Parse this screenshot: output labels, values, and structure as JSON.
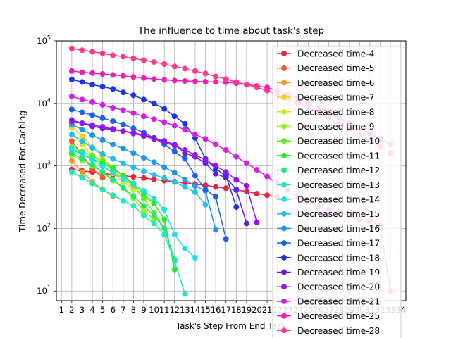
{
  "chart_data": {
    "type": "line",
    "title": "The influence to time about task's step",
    "xlabel": "Task's Step From End Task",
    "ylabel": "Time Decreased For Caching",
    "yscale": "log",
    "xlim": [
      0.5,
      34.5
    ],
    "ylim": [
      7,
      100000
    ],
    "x_ticks": [
      1,
      2,
      3,
      4,
      5,
      6,
      7,
      8,
      9,
      10,
      11,
      12,
      13,
      14,
      15,
      16,
      17,
      18,
      19,
      20,
      21,
      22,
      23,
      24,
      25,
      26,
      27,
      28,
      29,
      30,
      31,
      32,
      33,
      34
    ],
    "y_ticks": [
      {
        "value": 10,
        "base": "10",
        "exp": "1"
      },
      {
        "value": 100,
        "base": "10",
        "exp": "2"
      },
      {
        "value": 1000,
        "base": "10",
        "exp": "3"
      },
      {
        "value": 10000,
        "base": "10",
        "exp": "4"
      },
      {
        "value": 100000,
        "base": "10",
        "exp": "5"
      }
    ],
    "grid": true,
    "legend_position": "right",
    "series": [
      {
        "name": "Decreased time-4",
        "color": "#e8263e",
        "x": [
          2,
          3,
          4,
          5,
          6,
          7,
          8,
          9,
          10,
          11,
          12,
          13,
          14,
          15,
          16,
          17,
          18,
          19,
          20,
          21,
          22
        ],
        "values": [
          880,
          830,
          800,
          760,
          730,
          700,
          670,
          640,
          610,
          580,
          560,
          530,
          510,
          490,
          460,
          440,
          410,
          390,
          360,
          340,
          320
        ]
      },
      {
        "name": "Decreased time-5",
        "color": "#f25c2a",
        "x": [
          2,
          3,
          4,
          5
        ],
        "values": [
          2500,
          1500,
          900,
          650
        ]
      },
      {
        "name": "Decreased time-6",
        "color": "#f5961e",
        "x": [
          2,
          3,
          4,
          5,
          6
        ],
        "values": [
          1200,
          800,
          560,
          420,
          330
        ]
      },
      {
        "name": "Decreased time-7",
        "color": "#f0cf1c",
        "x": [
          2,
          3,
          4,
          5,
          6,
          7,
          8
        ],
        "values": [
          4200,
          3000,
          2000,
          1400,
          900,
          620,
          440
        ]
      },
      {
        "name": "Decreased time-8",
        "color": "#cfe81c",
        "x": [
          2,
          3,
          4,
          5,
          6,
          7,
          8,
          9,
          10
        ],
        "values": [
          3200,
          2200,
          1500,
          1050,
          760,
          560,
          420,
          320,
          250
        ]
      },
      {
        "name": "Decreased time-9",
        "color": "#93ee22",
        "x": [
          2,
          3,
          4,
          5,
          6,
          7,
          8,
          9,
          10
        ],
        "values": [
          1500,
          1200,
          1000,
          780,
          580,
          440,
          300,
          190,
          140
        ]
      },
      {
        "name": "Decreased time-10",
        "color": "#5aee22",
        "x": [
          2,
          3,
          4,
          5,
          6,
          7,
          8,
          9,
          10,
          11
        ],
        "values": [
          2000,
          1700,
          1450,
          1200,
          950,
          700,
          500,
          300,
          180,
          100
        ]
      },
      {
        "name": "Decreased time-11",
        "color": "#22ee28",
        "x": [
          2,
          3,
          4,
          5,
          6,
          7,
          8,
          9,
          10,
          11,
          12
        ],
        "values": [
          1800,
          1550,
          1300,
          1100,
          900,
          700,
          520,
          360,
          250,
          140,
          22
        ]
      },
      {
        "name": "Decreased time-12",
        "color": "#22e870",
        "x": [
          2,
          3,
          4,
          5,
          6,
          7,
          8,
          9,
          10,
          11,
          12
        ],
        "values": [
          1600,
          1300,
          1050,
          800,
          600,
          450,
          330,
          230,
          160,
          100,
          32
        ]
      },
      {
        "name": "Decreased time-13",
        "color": "#22e8b6",
        "x": [
          2,
          3,
          4,
          5,
          6,
          7,
          8,
          9,
          10,
          11,
          12,
          13
        ],
        "values": [
          800,
          650,
          520,
          420,
          340,
          280,
          230,
          160,
          120,
          80,
          30,
          9
        ]
      },
      {
        "name": "Decreased time-14",
        "color": "#22e0e8",
        "x": [
          2,
          3,
          4,
          5,
          6,
          7,
          8,
          9,
          10,
          11,
          12,
          13,
          14
        ],
        "values": [
          1900,
          1550,
          1250,
          980,
          780,
          620,
          500,
          400,
          300,
          200,
          80,
          48,
          34
        ]
      },
      {
        "name": "Decreased time-15",
        "color": "#22c0ee",
        "x": [
          2,
          3,
          4,
          5,
          6,
          7,
          8,
          9,
          10,
          11,
          12,
          13,
          14,
          15
        ],
        "values": [
          3200,
          2500,
          1950,
          1550,
          1300,
          1100,
          950,
          820,
          720,
          640,
          550,
          460,
          380,
          240
        ]
      },
      {
        "name": "Decreased time-16",
        "color": "#2296ee",
        "x": [
          2,
          3,
          4,
          5,
          6,
          7,
          8,
          9,
          10,
          11,
          12,
          13,
          14,
          15,
          16
        ],
        "values": [
          4600,
          3800,
          3100,
          2600,
          2200,
          1900,
          1600,
          1350,
          1150,
          950,
          780,
          600,
          480,
          400,
          95
        ]
      },
      {
        "name": "Decreased time-17",
        "color": "#1e60ee",
        "x": [
          2,
          3,
          4,
          5,
          6,
          7,
          8,
          9,
          10,
          11,
          12,
          13,
          14,
          15,
          16,
          17
        ],
        "values": [
          8000,
          7200,
          6500,
          5800,
          5200,
          4600,
          4000,
          3400,
          2800,
          2200,
          1700,
          1300,
          700,
          420,
          320,
          68
        ]
      },
      {
        "name": "Decreased time-18",
        "color": "#1e34e8",
        "x": [
          2,
          3,
          4,
          5,
          6,
          7,
          8,
          9,
          10,
          11,
          12,
          13,
          14,
          15,
          16,
          17,
          18
        ],
        "values": [
          24000,
          22000,
          20000,
          18500,
          17000,
          15000,
          13500,
          11500,
          10000,
          8200,
          6200,
          4700,
          2800,
          1300,
          900,
          700,
          220
        ]
      },
      {
        "name": "Decreased time-19",
        "color": "#5a22e8",
        "x": [
          2,
          3,
          4,
          5,
          6,
          7,
          8,
          9,
          10,
          11,
          12,
          13,
          14,
          15,
          16,
          17,
          18,
          19
        ],
        "values": [
          5400,
          4800,
          4300,
          4000,
          3800,
          3600,
          3400,
          3100,
          2800,
          2500,
          2200,
          1600,
          1400,
          1100,
          750,
          650,
          420,
          120
        ]
      },
      {
        "name": "Decreased time-20",
        "color": "#9a10e8",
        "x": [
          2,
          3,
          4,
          5,
          6,
          7,
          8,
          9,
          10,
          11,
          12,
          13,
          14,
          15,
          16,
          17,
          18,
          19,
          20
        ],
        "values": [
          5200,
          4800,
          4500,
          4200,
          3900,
          3600,
          3300,
          3000,
          2700,
          2400,
          2100,
          1800,
          1500,
          1250,
          1000,
          800,
          600,
          480,
          125
        ]
      },
      {
        "name": "Decreased time-21",
        "color": "#d21ee8",
        "x": [
          2,
          3,
          4,
          5,
          6,
          7,
          8,
          9,
          10,
          11,
          12,
          13,
          14,
          15,
          16,
          17,
          18,
          19,
          20,
          21,
          22,
          23,
          24,
          25,
          26,
          27,
          28,
          29,
          30,
          31,
          32,
          33
        ],
        "values": [
          13000,
          11500,
          10500,
          9500,
          8500,
          7800,
          7000,
          6200,
          5600,
          5000,
          4400,
          3800,
          3200,
          2700,
          2200,
          1800,
          1400,
          1100,
          870,
          680,
          520,
          410,
          320,
          260,
          220,
          200,
          180,
          160,
          140,
          130,
          110,
          10
        ]
      },
      {
        "name": "Decreased time-25",
        "color": "#ee1eb6",
        "x": [
          2,
          3,
          4,
          5,
          6,
          7,
          8,
          9,
          10,
          11,
          12,
          13,
          14,
          15,
          16,
          17,
          18,
          19,
          20,
          21,
          22,
          23,
          24,
          25,
          26,
          27,
          28,
          29,
          30,
          31,
          32,
          33
        ],
        "values": [
          33000,
          31500,
          30500,
          29500,
          28500,
          27500,
          26500,
          25500,
          24500,
          23800,
          23200,
          22800,
          22500,
          22200,
          22000,
          21800,
          21000,
          20000,
          19000,
          18000,
          16000,
          14000,
          12000,
          10000,
          8500,
          7000,
          5800,
          4800,
          4000,
          3300,
          2700,
          2200
        ]
      },
      {
        "name": "Decreased time-28",
        "color": "#ff3a8e",
        "x": [
          2,
          3,
          4,
          5,
          6,
          7,
          8,
          9,
          10,
          11,
          12,
          13,
          14,
          15,
          16,
          17,
          18,
          19,
          20,
          21,
          22,
          23,
          24,
          25,
          26,
          27,
          28,
          29,
          30,
          31,
          32,
          33
        ],
        "values": [
          75000,
          71000,
          67000,
          63000,
          59000,
          56000,
          52500,
          49000,
          46000,
          42500,
          39000,
          36000,
          33000,
          30000,
          27000,
          24500,
          22000,
          20000,
          18000,
          16000,
          14000,
          12000,
          10000,
          8500,
          7000,
          5800,
          4700,
          3800,
          3100,
          2500,
          2000,
          1600
        ]
      }
    ]
  }
}
